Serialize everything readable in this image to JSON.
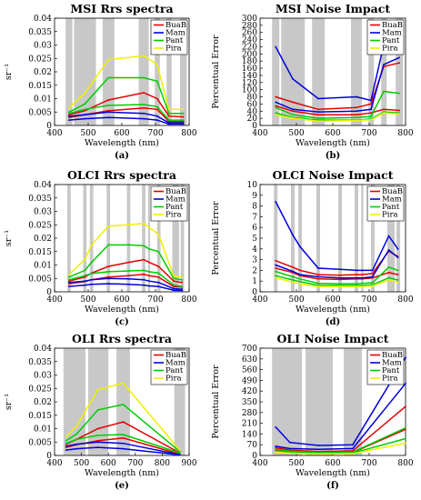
{
  "colors": {
    "BuaB": "#e60000",
    "Mam": "#0000dd",
    "Pant": "#00cc00",
    "Pira": "#f0f000",
    "band": "#c8c8c8"
  },
  "chart_data": [
    {
      "type": "line",
      "panel_label": "(a)",
      "title": "MSI Rrs spectra",
      "xlabel": "Wavelength (nm)",
      "ylabel": "sr⁻¹",
      "xlim": [
        400,
        800
      ],
      "ylim": [
        0,
        0.04
      ],
      "xticks": [
        400,
        500,
        600,
        700,
        800
      ],
      "xtick_labels": [
        "400",
        "500",
        "600",
        "700",
        "800"
      ],
      "yticks": [
        0,
        0.005,
        0.01,
        0.015,
        0.02,
        0.025,
        0.03,
        0.035,
        0.04
      ],
      "ytick_labels": [
        "0",
        "0.005",
        "0.01",
        "0.015",
        "0.02",
        "0.025",
        "0.03",
        "0.035",
        "0.04"
      ],
      "bands": [
        [
          433,
          453
        ],
        [
          458,
          523
        ],
        [
          543,
          578
        ],
        [
          650,
          680
        ],
        [
          698,
          713
        ],
        [
          733,
          748
        ],
        [
          773,
          793
        ]
      ],
      "legend_position": "top-right",
      "x": [
        443,
        490,
        560,
        665,
        705,
        740,
        783
      ],
      "series": [
        {
          "name": "BuaB",
          "color": "BuaB",
          "values": [
            0.004,
            0.0055,
            0.0095,
            0.0122,
            0.01,
            0.0035,
            0.0032
          ]
        },
        {
          "name": "BuaB",
          "color": "BuaB",
          "values": [
            0.003,
            0.004,
            0.0055,
            0.0065,
            0.006,
            0.0015,
            0.0015
          ]
        },
        {
          "name": "Mam",
          "color": "Mam",
          "values": [
            0.0035,
            0.004,
            0.005,
            0.0045,
            0.0035,
            0.001,
            0.001
          ]
        },
        {
          "name": "Mam",
          "color": "Mam",
          "values": [
            0.002,
            0.0025,
            0.003,
            0.0025,
            0.002,
            0.0005,
            0.0005
          ]
        },
        {
          "name": "Pant",
          "color": "Pant",
          "values": [
            0.005,
            0.008,
            0.0178,
            0.0178,
            0.0165,
            0.0045,
            0.0045
          ]
        },
        {
          "name": "Pant",
          "color": "Pant",
          "values": [
            0.0045,
            0.006,
            0.0075,
            0.0078,
            0.007,
            0.002,
            0.002
          ]
        },
        {
          "name": "Pira",
          "color": "Pira",
          "values": [
            0.0065,
            0.012,
            0.0245,
            0.026,
            0.0228,
            0.006,
            0.006
          ]
        }
      ]
    },
    {
      "type": "line",
      "panel_label": "(b)",
      "title": "MSI Noise Impact",
      "xlabel": "Wavelength (nm)",
      "ylabel": "Percentual Error",
      "xlim": [
        400,
        800
      ],
      "ylim": [
        0,
        300
      ],
      "xticks": [
        400,
        500,
        600,
        700,
        800
      ],
      "xtick_labels": [
        "400",
        "500",
        "600",
        "700",
        "800"
      ],
      "yticks": [
        0,
        20,
        40,
        60,
        80,
        100,
        120,
        140,
        160,
        180,
        200,
        220,
        240,
        260,
        280,
        300
      ],
      "ytick_labels": [
        "0",
        "20",
        "40",
        "60",
        "80",
        "100",
        "120",
        "140",
        "160",
        "180",
        "200",
        "220",
        "240",
        "260",
        "280",
        "300"
      ],
      "bands": [
        [
          433,
          453
        ],
        [
          458,
          523
        ],
        [
          543,
          578
        ],
        [
          650,
          680
        ],
        [
          698,
          713
        ],
        [
          733,
          748
        ],
        [
          773,
          793
        ]
      ],
      "legend_position": "top-right",
      "x": [
        443,
        490,
        560,
        665,
        705,
        740,
        783
      ],
      "series": [
        {
          "name": "BuaB",
          "color": "BuaB",
          "values": [
            80,
            65,
            45,
            50,
            60,
            165,
            175
          ]
        },
        {
          "name": "BuaB",
          "color": "BuaB",
          "values": [
            55,
            40,
            30,
            30,
            35,
            45,
            42
          ]
        },
        {
          "name": "Mam",
          "color": "Mam",
          "values": [
            220,
            130,
            75,
            80,
            70,
            225,
            222
          ]
        },
        {
          "name": "Mam",
          "color": "Mam",
          "values": [
            65,
            45,
            38,
            40,
            45,
            170,
            190
          ]
        },
        {
          "name": "Pant",
          "color": "Pant",
          "values": [
            50,
            30,
            20,
            22,
            25,
            95,
            90
          ]
        },
        {
          "name": "Pant",
          "color": "Pant",
          "values": [
            35,
            22,
            15,
            15,
            18,
            38,
            35
          ]
        },
        {
          "name": "Pira",
          "color": "Pira",
          "values": [
            30,
            20,
            12,
            14,
            16,
            35,
            32
          ]
        }
      ]
    },
    {
      "type": "line",
      "panel_label": "(c)",
      "title": "OLCI Rrs spectra",
      "xlabel": "Wavelength (nm)",
      "ylabel": "sr⁻¹",
      "xlim": [
        400,
        800
      ],
      "ylim": [
        0,
        0.04
      ],
      "xticks": [
        400,
        500,
        600,
        700,
        800
      ],
      "xtick_labels": [
        "400",
        "500",
        "600",
        "700",
        "800"
      ],
      "yticks": [
        0,
        0.005,
        0.01,
        0.015,
        0.02,
        0.025,
        0.03,
        0.035,
        0.04
      ],
      "ytick_labels": [
        "0",
        "0.005",
        "0.01",
        "0.015",
        "0.02",
        "0.025",
        "0.03",
        "0.035",
        "0.04"
      ],
      "bands": [
        [
          438,
          448
        ],
        [
          485,
          495
        ],
        [
          505,
          515
        ],
        [
          555,
          565
        ],
        [
          615,
          625
        ],
        [
          660,
          670
        ],
        [
          678,
          684
        ],
        [
          705,
          715
        ],
        [
          750,
          770
        ],
        [
          775,
          785
        ]
      ],
      "legend_position": "top-right",
      "x": [
        443,
        490,
        510,
        560,
        620,
        665,
        681,
        709,
        754,
        779
      ],
      "series": [
        {
          "name": "BuaB",
          "color": "BuaB",
          "values": [
            0.004,
            0.0055,
            0.007,
            0.0095,
            0.011,
            0.012,
            0.011,
            0.0095,
            0.004,
            0.0035
          ]
        },
        {
          "name": "BuaB",
          "color": "BuaB",
          "values": [
            0.003,
            0.0038,
            0.0045,
            0.0055,
            0.006,
            0.0065,
            0.006,
            0.0055,
            0.002,
            0.0018
          ]
        },
        {
          "name": "Mam",
          "color": "Mam",
          "values": [
            0.0035,
            0.004,
            0.0045,
            0.005,
            0.0048,
            0.0045,
            0.004,
            0.0035,
            0.0012,
            0.001
          ]
        },
        {
          "name": "Mam",
          "color": "Mam",
          "values": [
            0.002,
            0.0025,
            0.0028,
            0.003,
            0.0028,
            0.0025,
            0.0022,
            0.002,
            0.0006,
            0.0005
          ]
        },
        {
          "name": "Pant",
          "color": "Pant",
          "values": [
            0.0055,
            0.008,
            0.011,
            0.0175,
            0.0175,
            0.0172,
            0.016,
            0.015,
            0.005,
            0.0045
          ]
        },
        {
          "name": "Pant",
          "color": "Pant",
          "values": [
            0.0045,
            0.006,
            0.0068,
            0.0075,
            0.0078,
            0.008,
            0.0075,
            0.007,
            0.0025,
            0.002
          ]
        },
        {
          "name": "Pira",
          "color": "Pira",
          "values": [
            0.0065,
            0.012,
            0.0175,
            0.0245,
            0.025,
            0.0255,
            0.024,
            0.0215,
            0.006,
            0.0055
          ]
        }
      ]
    },
    {
      "type": "line",
      "panel_label": "(d)",
      "title": "OLCI Noise Impact",
      "xlabel": "Wavelength (nm)",
      "ylabel": "Percentual Error",
      "xlim": [
        400,
        800
      ],
      "ylim": [
        0,
        10
      ],
      "xticks": [
        400,
        500,
        600,
        700,
        800
      ],
      "xtick_labels": [
        "400",
        "500",
        "600",
        "700",
        "800"
      ],
      "yticks": [
        0,
        1,
        2,
        3,
        4,
        5,
        6,
        7,
        8,
        9,
        10
      ],
      "ytick_labels": [
        "0",
        "1",
        "2",
        "3",
        "4",
        "5",
        "6",
        "7",
        "8",
        "9",
        "10"
      ],
      "bands": [
        [
          438,
          448
        ],
        [
          485,
          495
        ],
        [
          505,
          515
        ],
        [
          555,
          565
        ],
        [
          615,
          625
        ],
        [
          660,
          670
        ],
        [
          678,
          684
        ],
        [
          705,
          715
        ],
        [
          750,
          770
        ],
        [
          775,
          785
        ]
      ],
      "legend_position": "top-right",
      "x": [
        443,
        490,
        510,
        560,
        620,
        665,
        681,
        709,
        754,
        779
      ],
      "series": [
        {
          "name": "BuaB",
          "color": "BuaB",
          "values": [
            2.9,
            2.3,
            2.0,
            1.6,
            1.55,
            1.6,
            1.6,
            1.7,
            3.8,
            3.3
          ]
        },
        {
          "name": "BuaB",
          "color": "BuaB",
          "values": [
            2.2,
            1.8,
            1.5,
            1.2,
            1.15,
            1.2,
            1.2,
            1.3,
            1.8,
            1.6
          ]
        },
        {
          "name": "Mam",
          "color": "Mam",
          "values": [
            8.4,
            5.3,
            4.2,
            2.2,
            2.1,
            2.0,
            2.0,
            2.0,
            5.2,
            4.0
          ]
        },
        {
          "name": "Mam",
          "color": "Mam",
          "values": [
            2.5,
            1.9,
            1.6,
            1.4,
            1.3,
            1.3,
            1.3,
            1.4,
            3.9,
            3.2
          ]
        },
        {
          "name": "Pant",
          "color": "Pant",
          "values": [
            1.9,
            1.4,
            1.2,
            0.8,
            0.75,
            0.75,
            0.8,
            0.85,
            2.3,
            2.0
          ]
        },
        {
          "name": "Pant",
          "color": "Pant",
          "values": [
            1.5,
            1.1,
            0.95,
            0.6,
            0.6,
            0.6,
            0.6,
            0.65,
            1.3,
            1.1
          ]
        },
        {
          "name": "Pira",
          "color": "Pira",
          "values": [
            1.3,
            0.9,
            0.75,
            0.5,
            0.5,
            0.5,
            0.5,
            0.55,
            1.1,
            0.9
          ]
        }
      ]
    },
    {
      "type": "line",
      "panel_label": "(e)",
      "title": "OLI Rrs spectra",
      "xlabel": "Wavelength (nm)",
      "ylabel": "sr⁻¹",
      "xlim": [
        400,
        900
      ],
      "ylim": [
        0,
        0.04
      ],
      "xticks": [
        400,
        500,
        600,
        700,
        800,
        900
      ],
      "xtick_labels": [
        "400",
        "500",
        "600",
        "700",
        "800",
        "900"
      ],
      "yticks": [
        0,
        0.005,
        0.01,
        0.015,
        0.02,
        0.025,
        0.03,
        0.035,
        0.04
      ],
      "ytick_labels": [
        "0",
        "0.005",
        "0.01",
        "0.015",
        "0.02",
        "0.025",
        "0.03",
        "0.035",
        "0.04"
      ],
      "bands": [
        [
          433,
          453
        ],
        [
          450,
          515
        ],
        [
          525,
          600
        ],
        [
          630,
          680
        ],
        [
          845,
          885
        ]
      ],
      "legend_position": "top-right",
      "x": [
        443,
        482,
        561,
        655,
        865
      ],
      "series": [
        {
          "name": "BuaB",
          "color": "BuaB",
          "values": [
            0.0042,
            0.006,
            0.01,
            0.0125,
            0.001
          ]
        },
        {
          "name": "BuaB",
          "color": "BuaB",
          "values": [
            0.003,
            0.004,
            0.0055,
            0.0065,
            0.0005
          ]
        },
        {
          "name": "Mam",
          "color": "Mam",
          "values": [
            0.0035,
            0.0042,
            0.005,
            0.0045,
            0.0003
          ]
        },
        {
          "name": "Mam",
          "color": "Mam",
          "values": [
            0.002,
            0.0025,
            0.003,
            0.0025,
            0.0002
          ]
        },
        {
          "name": "Pant",
          "color": "Pant",
          "values": [
            0.0055,
            0.008,
            0.017,
            0.019,
            0.0015
          ]
        },
        {
          "name": "Pant",
          "color": "Pant",
          "values": [
            0.0045,
            0.006,
            0.0075,
            0.0078,
            0.001
          ]
        },
        {
          "name": "Pira",
          "color": "Pira",
          "values": [
            0.007,
            0.011,
            0.0245,
            0.027,
            0.002
          ]
        }
      ]
    },
    {
      "type": "line",
      "panel_label": "(f)",
      "title": "OLI Noise Impact",
      "xlabel": "Wavelength (nm)",
      "ylabel": "Percentual Error",
      "xlim": [
        400,
        800
      ],
      "ylim": [
        0,
        700
      ],
      "xticks": [
        400,
        500,
        600,
        700,
        800
      ],
      "xtick_labels": [
        "400",
        "500",
        "600",
        "700",
        "800"
      ],
      "yticks": [
        0,
        70,
        140,
        210,
        280,
        350,
        420,
        490,
        560,
        630,
        700
      ],
      "ytick_labels": [
        "0",
        "70",
        "140",
        "210",
        "280",
        "350",
        "420",
        "490",
        "560",
        "630",
        "700"
      ],
      "bands": [
        [
          433,
          453
        ],
        [
          450,
          515
        ],
        [
          525,
          600
        ],
        [
          630,
          680
        ]
      ],
      "legend_position": "top-right",
      "x": [
        443,
        482,
        561,
        655,
        800
      ],
      "series": [
        {
          "name": "BuaB",
          "color": "BuaB",
          "values": [
            50,
            35,
            25,
            30,
            320
          ]
        },
        {
          "name": "BuaB",
          "color": "BuaB",
          "values": [
            35,
            25,
            18,
            20,
            170
          ]
        },
        {
          "name": "Mam",
          "color": "Mam",
          "values": [
            185,
            85,
            65,
            70,
            640
          ]
        },
        {
          "name": "Mam",
          "color": "Mam",
          "values": [
            60,
            45,
            40,
            45,
            470
          ]
        },
        {
          "name": "Pant",
          "color": "Pant",
          "values": [
            40,
            28,
            20,
            22,
            180
          ]
        },
        {
          "name": "Pant",
          "color": "Pant",
          "values": [
            28,
            20,
            14,
            16,
            110
          ]
        },
        {
          "name": "Pira",
          "color": "Pira",
          "values": [
            22,
            15,
            10,
            12,
            80
          ]
        }
      ]
    }
  ],
  "legend": [
    "BuaB",
    "Mam",
    "Pant",
    "Pira"
  ]
}
